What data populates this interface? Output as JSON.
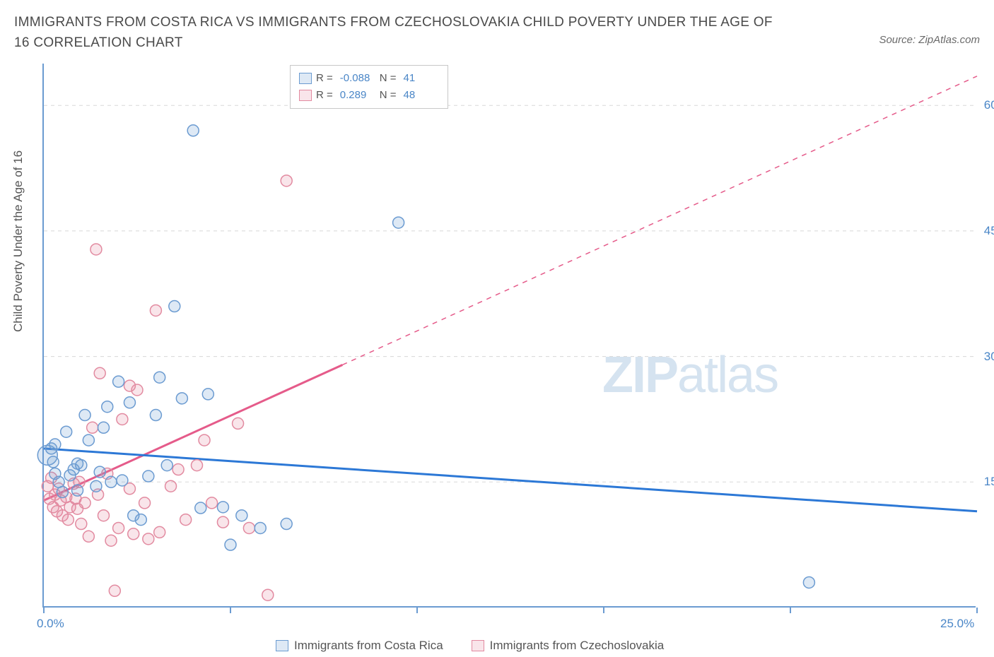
{
  "title": "IMMIGRANTS FROM COSTA RICA VS IMMIGRANTS FROM CZECHOSLOVAKIA CHILD POVERTY UNDER THE AGE OF 16 CORRELATION CHART",
  "source": "Source: ZipAtlas.com",
  "y_axis_label": "Child Poverty Under the Age of 16",
  "watermark_left": "ZIP",
  "watermark_right": "atlas",
  "colors": {
    "series_a_stroke": "#6b9bd1",
    "series_a_fill": "rgba(107,155,209,0.22)",
    "series_b_stroke": "#e28aa0",
    "series_b_fill": "rgba(226,138,160,0.22)",
    "trend_a": "#2c78d6",
    "trend_b": "#e55b8a",
    "axis": "#6b9bd1",
    "grid": "#d8d8d8",
    "text_title": "#4a4a4a",
    "text_axis_val": "#4a86c7",
    "background": "#ffffff"
  },
  "chart": {
    "type": "scatter",
    "xlim": [
      0,
      25
    ],
    "ylim": [
      0,
      65
    ],
    "x_ticks": [
      0,
      5,
      10,
      15,
      20,
      25
    ],
    "x_tick_labels": {
      "0": "0.0%",
      "25": "25.0%"
    },
    "y_ticks": [
      15,
      30,
      45,
      60
    ],
    "y_tick_labels": {
      "15": "15.0%",
      "30": "30.0%",
      "45": "45.0%",
      "60": "60.0%"
    },
    "marker_radius": 8,
    "marker_radius_large": 14,
    "line_width_trend": 3,
    "line_width_trend_dash": 1.5,
    "series": [
      {
        "name": "Immigrants from Costa Rica",
        "R": "-0.088",
        "N": "41",
        "trend": {
          "x1": 0,
          "y1": 19.0,
          "x2": 25,
          "y2": 11.5
        },
        "points": [
          [
            0.1,
            18.2
          ],
          [
            0.2,
            19.0
          ],
          [
            0.25,
            17.4
          ],
          [
            0.3,
            19.5
          ],
          [
            0.3,
            16.0
          ],
          [
            0.4,
            15.0
          ],
          [
            0.5,
            13.8
          ],
          [
            0.6,
            21.0
          ],
          [
            0.7,
            15.8
          ],
          [
            0.8,
            16.5
          ],
          [
            0.9,
            17.2
          ],
          [
            0.9,
            14.0
          ],
          [
            1.0,
            17.0
          ],
          [
            1.1,
            23.0
          ],
          [
            1.2,
            20.0
          ],
          [
            1.4,
            14.5
          ],
          [
            1.5,
            16.2
          ],
          [
            1.6,
            21.5
          ],
          [
            1.7,
            24.0
          ],
          [
            1.8,
            15.0
          ],
          [
            2.0,
            27.0
          ],
          [
            2.1,
            15.2
          ],
          [
            2.3,
            24.5
          ],
          [
            2.4,
            11.0
          ],
          [
            2.6,
            10.5
          ],
          [
            2.8,
            15.7
          ],
          [
            3.0,
            23.0
          ],
          [
            3.1,
            27.5
          ],
          [
            3.3,
            17.0
          ],
          [
            3.5,
            36.0
          ],
          [
            3.7,
            25.0
          ],
          [
            4.0,
            57.0
          ],
          [
            4.2,
            11.9
          ],
          [
            4.4,
            25.5
          ],
          [
            4.8,
            12.0
          ],
          [
            5.0,
            7.5
          ],
          [
            5.3,
            11.0
          ],
          [
            5.8,
            9.5
          ],
          [
            6.5,
            10.0
          ],
          [
            9.5,
            46.0
          ],
          [
            20.5,
            3.0
          ]
        ]
      },
      {
        "name": "Immigrants from Czechoslovakia",
        "R": "0.289",
        "N": "48",
        "trend": {
          "x1": 0,
          "y1": 12.8,
          "x2": 8.0,
          "y2": 29.0,
          "x3": 25,
          "y3": 63.5
        },
        "points": [
          [
            0.1,
            14.5
          ],
          [
            0.15,
            13.0
          ],
          [
            0.2,
            15.5
          ],
          [
            0.25,
            12.0
          ],
          [
            0.3,
            13.5
          ],
          [
            0.35,
            11.5
          ],
          [
            0.4,
            14.2
          ],
          [
            0.45,
            12.8
          ],
          [
            0.5,
            11.0
          ],
          [
            0.6,
            13.2
          ],
          [
            0.65,
            10.5
          ],
          [
            0.7,
            12.0
          ],
          [
            0.8,
            14.8
          ],
          [
            0.85,
            13.0
          ],
          [
            0.9,
            11.8
          ],
          [
            0.95,
            15.0
          ],
          [
            1.0,
            10.0
          ],
          [
            1.1,
            12.5
          ],
          [
            1.2,
            8.5
          ],
          [
            1.3,
            21.5
          ],
          [
            1.4,
            42.8
          ],
          [
            1.45,
            13.5
          ],
          [
            1.5,
            28.0
          ],
          [
            1.6,
            11.0
          ],
          [
            1.7,
            16.0
          ],
          [
            1.8,
            8.0
          ],
          [
            1.9,
            2.0
          ],
          [
            2.0,
            9.5
          ],
          [
            2.1,
            22.5
          ],
          [
            2.3,
            26.5
          ],
          [
            2.3,
            14.2
          ],
          [
            2.4,
            8.8
          ],
          [
            2.5,
            26.0
          ],
          [
            2.7,
            12.5
          ],
          [
            2.8,
            8.2
          ],
          [
            3.0,
            35.5
          ],
          [
            3.1,
            9.0
          ],
          [
            3.4,
            14.5
          ],
          [
            3.6,
            16.5
          ],
          [
            3.8,
            10.5
          ],
          [
            4.1,
            17.0
          ],
          [
            4.3,
            20.0
          ],
          [
            4.5,
            12.5
          ],
          [
            4.8,
            10.2
          ],
          [
            5.2,
            22.0
          ],
          [
            5.5,
            9.5
          ],
          [
            6.0,
            1.5
          ],
          [
            6.5,
            51.0
          ]
        ]
      }
    ]
  },
  "legend_top": {
    "row1_R_label": "R =",
    "row1_N_label": "N ="
  }
}
